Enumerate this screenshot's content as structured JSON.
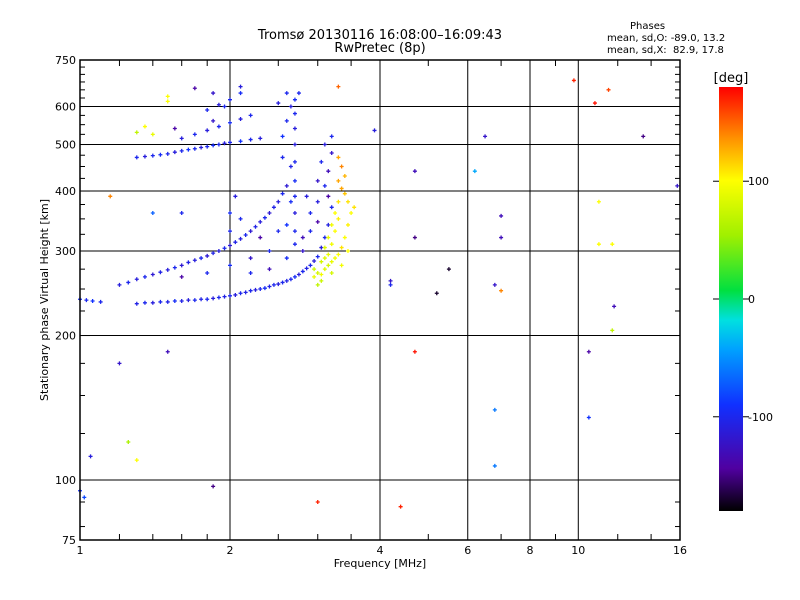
{
  "chart_data": {
    "type": "scatter",
    "title": "Tromsø 20130116 16:08:00–16:09:43",
    "subtitle": "RwPretec (8p)",
    "xlabel": "Frequency [MHz]",
    "ylabel": "Stationary phase Virtual Height [km]",
    "xscale": "log",
    "yscale": "log",
    "xlim": [
      1,
      16
    ],
    "ylim": [
      75,
      750
    ],
    "x_ticks": [
      1,
      2,
      4,
      6,
      8,
      10,
      16
    ],
    "y_ticks": [
      75,
      100,
      200,
      300,
      400,
      500,
      600,
      750
    ],
    "x_grid": [
      2,
      4,
      6,
      8,
      10
    ],
    "y_grid": [
      100,
      200,
      300,
      400,
      500,
      600
    ],
    "legend": {
      "title": "Phases",
      "line_o": "mean, sd,O: -89.0, 13.2",
      "line_x": "mean, sd,X:  82.9, 17.8"
    },
    "colorbar": {
      "label": "[deg]",
      "range": [
        -180,
        180
      ],
      "ticks": [
        100,
        0,
        -100
      ],
      "tick_labels": [
        "100",
        "0",
        "-100"
      ]
    },
    "points_columns": [
      "frequency_MHz",
      "height_km",
      "phase_deg"
    ],
    "points": [
      [
        1.0,
        238,
        -95
      ],
      [
        1.03,
        237,
        -100
      ],
      [
        1.06,
        236,
        -90
      ],
      [
        1.1,
        235,
        -100
      ],
      [
        1.3,
        233,
        -105
      ],
      [
        1.35,
        234,
        -100
      ],
      [
        1.4,
        234,
        -110
      ],
      [
        1.45,
        235,
        -100
      ],
      [
        1.5,
        235,
        -105
      ],
      [
        1.55,
        236,
        -95
      ],
      [
        1.6,
        236,
        -105
      ],
      [
        1.65,
        237,
        -110
      ],
      [
        1.7,
        237,
        -100
      ],
      [
        1.75,
        238,
        -105
      ],
      [
        1.8,
        238,
        -100
      ],
      [
        1.85,
        239,
        -110
      ],
      [
        1.9,
        240,
        -100
      ],
      [
        1.95,
        241,
        -105
      ],
      [
        2.0,
        242,
        -100
      ],
      [
        2.05,
        243,
        -110
      ],
      [
        2.1,
        245,
        -100
      ],
      [
        2.15,
        246,
        -105
      ],
      [
        2.2,
        248,
        -100
      ],
      [
        2.25,
        249,
        -110
      ],
      [
        2.3,
        250,
        -100
      ],
      [
        2.35,
        251,
        -95
      ],
      [
        2.4,
        253,
        -105
      ],
      [
        2.45,
        255,
        -100
      ],
      [
        2.5,
        256,
        -110
      ],
      [
        2.55,
        258,
        -100
      ],
      [
        2.6,
        260,
        -105
      ],
      [
        2.65,
        262,
        -100
      ],
      [
        2.7,
        265,
        -95
      ],
      [
        2.75,
        268,
        -110
      ],
      [
        2.8,
        272,
        -100
      ],
      [
        2.85,
        276,
        -105
      ],
      [
        2.9,
        280,
        -100
      ],
      [
        2.95,
        286,
        -110
      ],
      [
        3.0,
        292,
        -100
      ],
      [
        3.05,
        305,
        -110
      ],
      [
        3.1,
        320,
        -100
      ],
      [
        3.15,
        340,
        -105
      ],
      [
        3.2,
        370,
        -100
      ],
      [
        1.2,
        255,
        -110
      ],
      [
        1.25,
        258,
        -100
      ],
      [
        1.3,
        262,
        -110
      ],
      [
        1.35,
        265,
        -100
      ],
      [
        1.4,
        268,
        -115
      ],
      [
        1.45,
        271,
        -105
      ],
      [
        1.5,
        274,
        -110
      ],
      [
        1.55,
        277,
        -100
      ],
      [
        1.6,
        280,
        -115
      ],
      [
        1.65,
        284,
        -105
      ],
      [
        1.7,
        287,
        -110
      ],
      [
        1.75,
        290,
        -100
      ],
      [
        1.8,
        293,
        -115
      ],
      [
        1.85,
        297,
        -105
      ],
      [
        1.9,
        300,
        -110
      ],
      [
        1.95,
        304,
        -100
      ],
      [
        2.0,
        308,
        -115
      ],
      [
        2.05,
        313,
        -105
      ],
      [
        2.1,
        318,
        -110
      ],
      [
        2.15,
        324,
        -100
      ],
      [
        2.2,
        330,
        -115
      ],
      [
        2.25,
        337,
        -105
      ],
      [
        2.3,
        345,
        -110
      ],
      [
        2.35,
        352,
        -100
      ],
      [
        2.4,
        360,
        -115
      ],
      [
        2.45,
        370,
        -105
      ],
      [
        2.5,
        380,
        -110
      ],
      [
        2.55,
        395,
        -100
      ],
      [
        2.6,
        410,
        -115
      ],
      [
        2.65,
        450,
        -105
      ],
      [
        2.7,
        500,
        -110
      ],
      [
        1.6,
        265,
        -140
      ],
      [
        1.8,
        270,
        -100
      ],
      [
        2.0,
        280,
        -95
      ],
      [
        2.2,
        290,
        -120
      ],
      [
        2.4,
        300,
        -100
      ],
      [
        2.6,
        290,
        -95
      ],
      [
        2.8,
        300,
        -120
      ],
      [
        2.2,
        270,
        -100
      ],
      [
        2.4,
        275,
        -130
      ],
      [
        2.0,
        330,
        -100
      ],
      [
        2.0,
        360,
        -95
      ],
      [
        2.05,
        390,
        -110
      ],
      [
        2.1,
        350,
        -100
      ],
      [
        2.3,
        320,
        -140
      ],
      [
        2.5,
        330,
        -100
      ],
      [
        2.6,
        340,
        -90
      ],
      [
        2.7,
        310,
        -100
      ],
      [
        2.8,
        320,
        -130
      ],
      [
        2.9,
        330,
        -100
      ],
      [
        3.0,
        345,
        -140
      ],
      [
        2.9,
        360,
        -100
      ],
      [
        2.85,
        390,
        -110
      ],
      [
        2.7,
        330,
        -100
      ],
      [
        2.7,
        360,
        -110
      ],
      [
        2.7,
        390,
        -100
      ],
      [
        2.7,
        420,
        -95
      ],
      [
        2.7,
        460,
        -100
      ],
      [
        2.7,
        540,
        -110
      ],
      [
        2.7,
        580,
        -100
      ],
      [
        2.7,
        620,
        -95
      ],
      [
        2.75,
        640,
        -100
      ],
      [
        2.65,
        600,
        -110
      ],
      [
        2.6,
        560,
        -100
      ],
      [
        2.55,
        520,
        -90
      ],
      [
        2.6,
        640,
        -100
      ],
      [
        2.5,
        610,
        -110
      ],
      [
        2.55,
        470,
        -100
      ],
      [
        2.65,
        380,
        -95
      ],
      [
        3.0,
        380,
        -110
      ],
      [
        3.0,
        420,
        -120
      ],
      [
        3.05,
        460,
        -100
      ],
      [
        3.1,
        500,
        -110
      ],
      [
        3.15,
        440,
        -130
      ],
      [
        3.1,
        410,
        -100
      ],
      [
        3.2,
        480,
        -120
      ],
      [
        3.2,
        520,
        -100
      ],
      [
        3.15,
        390,
        -140
      ],
      [
        1.3,
        470,
        -100
      ],
      [
        1.35,
        472,
        -110
      ],
      [
        1.4,
        474,
        -100
      ],
      [
        1.45,
        476,
        -95
      ],
      [
        1.5,
        478,
        -100
      ],
      [
        1.55,
        482,
        -110
      ],
      [
        1.6,
        485,
        -100
      ],
      [
        1.65,
        488,
        -90
      ],
      [
        1.7,
        490,
        -100
      ],
      [
        1.75,
        493,
        -110
      ],
      [
        1.8,
        495,
        -100
      ],
      [
        1.85,
        498,
        -95
      ],
      [
        1.9,
        500,
        -100
      ],
      [
        1.95,
        503,
        -110
      ],
      [
        2.0,
        505,
        -100
      ],
      [
        2.1,
        508,
        -90
      ],
      [
        2.2,
        512,
        -100
      ],
      [
        2.3,
        515,
        -110
      ],
      [
        1.6,
        515,
        -110
      ],
      [
        1.7,
        525,
        -100
      ],
      [
        1.8,
        535,
        -110
      ],
      [
        1.9,
        545,
        -100
      ],
      [
        2.0,
        555,
        -95
      ],
      [
        2.1,
        565,
        -110
      ],
      [
        2.2,
        575,
        -100
      ],
      [
        1.8,
        590,
        -100
      ],
      [
        1.9,
        605,
        -110
      ],
      [
        2.0,
        620,
        -100
      ],
      [
        2.1,
        640,
        -95
      ],
      [
        1.85,
        560,
        -120
      ],
      [
        1.55,
        540,
        -140
      ],
      [
        1.35,
        545,
        100
      ],
      [
        1.3,
        530,
        70
      ],
      [
        1.4,
        525,
        90
      ],
      [
        1.5,
        630,
        100
      ],
      [
        1.5,
        615,
        100
      ],
      [
        2.95,
        265,
        90
      ],
      [
        3.0,
        270,
        80
      ],
      [
        3.05,
        268,
        95
      ],
      [
        3.1,
        275,
        85
      ],
      [
        3.15,
        280,
        80
      ],
      [
        3.2,
        285,
        90
      ],
      [
        3.25,
        290,
        95
      ],
      [
        3.3,
        295,
        100
      ],
      [
        3.35,
        305,
        110
      ],
      [
        3.4,
        320,
        100
      ],
      [
        3.45,
        340,
        105
      ],
      [
        3.5,
        360,
        100
      ],
      [
        3.45,
        380,
        110
      ],
      [
        3.4,
        395,
        120
      ],
      [
        3.35,
        405,
        130
      ],
      [
        3.3,
        380,
        110
      ],
      [
        3.3,
        350,
        105
      ],
      [
        3.25,
        330,
        100
      ],
      [
        3.2,
        310,
        95
      ],
      [
        3.15,
        295,
        90
      ],
      [
        3.1,
        290,
        85
      ],
      [
        3.05,
        285,
        80
      ],
      [
        2.95,
        275,
        75
      ],
      [
        3.3,
        420,
        130
      ],
      [
        3.35,
        450,
        140
      ],
      [
        3.3,
        470,
        130
      ],
      [
        3.4,
        430,
        125
      ],
      [
        3.25,
        360,
        100
      ],
      [
        3.2,
        340,
        95
      ],
      [
        3.15,
        320,
        90
      ],
      [
        3.1,
        305,
        85
      ],
      [
        3.05,
        260,
        75
      ],
      [
        3.0,
        255,
        70
      ],
      [
        3.2,
        270,
        80
      ],
      [
        3.35,
        280,
        95
      ],
      [
        3.45,
        300,
        100
      ],
      [
        3.55,
        370,
        110
      ],
      [
        1.15,
        390,
        140
      ],
      [
        1.2,
        175,
        -120
      ],
      [
        1.5,
        185,
        -130
      ],
      [
        1.85,
        97,
        -150
      ],
      [
        1.05,
        112,
        -110
      ],
      [
        1.3,
        110,
        100
      ],
      [
        1.25,
        120,
        60
      ],
      [
        4.4,
        88,
        170
      ],
      [
        3.0,
        90,
        170
      ],
      [
        4.7,
        185,
        175
      ],
      [
        4.2,
        260,
        -120
      ],
      [
        4.2,
        255,
        -100
      ],
      [
        5.2,
        245,
        -170
      ],
      [
        5.5,
        275,
        -170
      ],
      [
        4.7,
        320,
        -150
      ],
      [
        4.7,
        440,
        -130
      ],
      [
        6.5,
        520,
        -120
      ],
      [
        6.8,
        255,
        -120
      ],
      [
        7.0,
        248,
        140
      ],
      [
        6.8,
        140,
        -60
      ],
      [
        6.8,
        107,
        -60
      ],
      [
        7.0,
        355,
        -130
      ],
      [
        7.0,
        320,
        -130
      ],
      [
        9.8,
        680,
        170
      ],
      [
        10.8,
        610,
        175
      ],
      [
        11.5,
        650,
        160
      ],
      [
        11.0,
        380,
        100
      ],
      [
        11.0,
        310,
        100
      ],
      [
        11.7,
        310,
        100
      ],
      [
        11.8,
        230,
        -130
      ],
      [
        11.7,
        205,
        70
      ],
      [
        10.5,
        185,
        -140
      ],
      [
        10.5,
        135,
        -90
      ],
      [
        13.5,
        520,
        -150
      ],
      [
        15.8,
        410,
        -120
      ],
      [
        6.2,
        440,
        -40
      ],
      [
        3.3,
        660,
        150
      ],
      [
        3.9,
        535,
        -110
      ],
      [
        1.0,
        95,
        -90
      ],
      [
        1.02,
        92,
        -80
      ],
      [
        1.4,
        360,
        -70
      ],
      [
        1.6,
        360,
        -100
      ],
      [
        1.7,
        655,
        -140
      ],
      [
        1.85,
        640,
        -120
      ],
      [
        1.95,
        600,
        -100
      ],
      [
        2.1,
        660,
        -110
      ]
    ]
  }
}
